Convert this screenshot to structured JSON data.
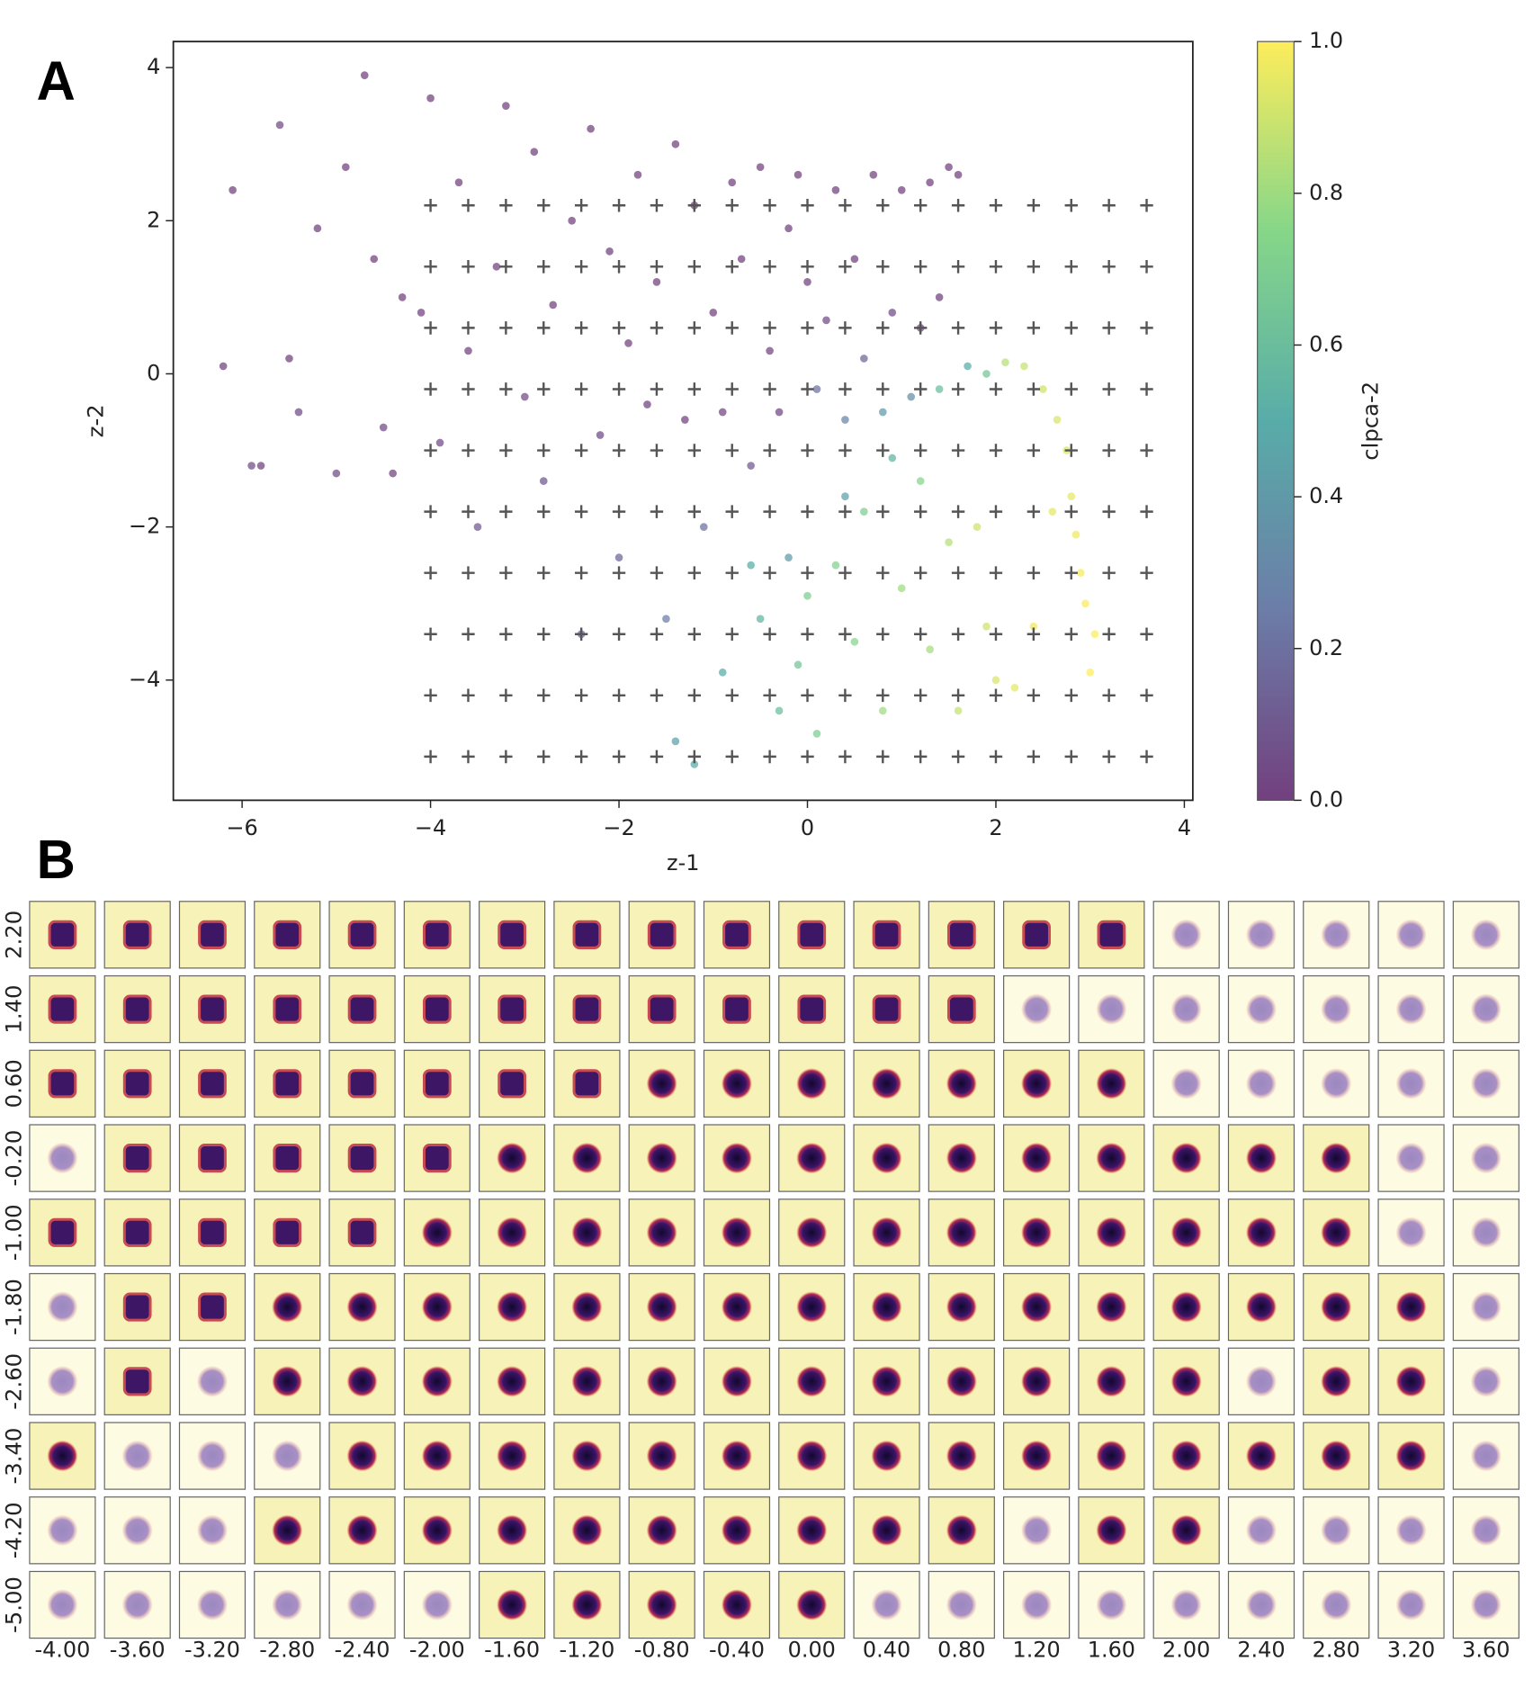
{
  "panels": {
    "a": "A",
    "b": "B"
  },
  "chart_data": [
    {
      "type": "scatter",
      "xlabel": "z-1",
      "ylabel": "z-2",
      "colorbar_label": "clpca-2",
      "colormap": "viridis",
      "xlim": [
        -6.73,
        4.09
      ],
      "ylim": [
        -5.57,
        4.34
      ],
      "clim": [
        0,
        1
      ],
      "xticks": [
        {
          "value": -6,
          "label": "−6"
        },
        {
          "value": -4,
          "label": "−4"
        },
        {
          "value": -2,
          "label": "−2"
        },
        0,
        2,
        4
      ],
      "yticks": [
        {
          "value": -4,
          "label": "−4"
        },
        {
          "value": -2,
          "label": "−2"
        },
        0,
        2,
        4
      ],
      "cticks": [
        {
          "value": 0,
          "label": "0.0"
        },
        0.2,
        0.4,
        0.6,
        0.8,
        {
          "value": 1,
          "label": "1.0"
        }
      ],
      "x": [
        -6.2,
        -6.1,
        -5.9,
        -5.8,
        -5.6,
        -5.5,
        -5.4,
        -5.2,
        -5.0,
        -4.9,
        -4.7,
        -4.6,
        -4.5,
        -4.4,
        -4.3,
        -4.1,
        -4.0,
        -3.9,
        -3.7,
        -3.6,
        -3.5,
        -3.3,
        -3.2,
        -3.0,
        -2.9,
        -2.8,
        -2.7,
        -2.5,
        -2.4,
        -2.3,
        -2.2,
        -2.1,
        -2.0,
        -1.9,
        -1.8,
        -1.7,
        -1.6,
        -1.5,
        -1.4,
        -1.3,
        -1.2,
        -1.1,
        -1.0,
        -0.9,
        -0.8,
        -0.7,
        -0.6,
        -0.5,
        -0.4,
        -0.3,
        -0.2,
        -0.1,
        0,
        0.1,
        0.2,
        0.3,
        0.4,
        0.5,
        0.6,
        0.7,
        0.8,
        0.9,
        1.0,
        1.1,
        1.2,
        1.3,
        1.4,
        1.5,
        1.6,
        1.7,
        -1.4,
        -1.2,
        -0.9,
        -0.6,
        -0.5,
        -0.3,
        -0.1,
        0,
        0.1,
        0.3,
        0.5,
        0.6,
        0.8,
        1.0,
        1.2,
        1.3,
        1.5,
        1.6,
        1.8,
        1.9,
        2.0,
        1.4,
        1.9,
        0.9,
        0.4,
        -0.2,
        2.1,
        2.3,
        2.5,
        2.65,
        2.75,
        2.8,
        2.85,
        2.9,
        2.95,
        3.05,
        3.0,
        2.6,
        2.4,
        2.2
      ],
      "values": [
        0.1,
        2.4,
        -1.2,
        -1.2,
        3.25,
        0.2,
        -0.5,
        1.9,
        -1.3,
        2.7,
        3.9,
        1.5,
        -0.7,
        -1.3,
        1.0,
        0.8,
        3.6,
        -0.9,
        2.5,
        0.3,
        -2.0,
        1.4,
        3.5,
        -0.3,
        2.9,
        -1.4,
        0.9,
        2.0,
        -3.4,
        3.2,
        -0.8,
        1.6,
        -2.4,
        0.4,
        2.6,
        -0.4,
        1.2,
        -3.2,
        3.0,
        -0.6,
        2.2,
        -2.0,
        0.8,
        -0.5,
        2.5,
        1.5,
        -1.2,
        2.7,
        0.3,
        -0.5,
        1.9,
        2.6,
        1.2,
        -0.2,
        0.7,
        2.4,
        -0.6,
        1.5,
        0.2,
        2.6,
        -0.5,
        0.8,
        2.4,
        -0.3,
        0.6,
        2.5,
        1.0,
        2.7,
        2.6,
        0.1,
        -4.8,
        -5.1,
        -3.9,
        -2.5,
        -3.2,
        -4.4,
        -3.8,
        -2.9,
        -4.7,
        -2.5,
        -3.5,
        -1.8,
        -4.4,
        -2.8,
        -1.4,
        -3.6,
        -2.2,
        -4.4,
        -2.0,
        -3.3,
        -4.0,
        -0.2,
        0.0,
        -1.1,
        -1.6,
        -2.4,
        0.15,
        0.1,
        -0.2,
        -0.6,
        -1.0,
        -1.6,
        -2.1,
        -2.6,
        -3.0,
        -3.4,
        -3.9,
        -1.8,
        -3.3,
        -4.1
      ],
      "c": [
        0,
        0,
        0.05,
        0,
        0.05,
        0,
        0.05,
        0,
        0.05,
        0,
        0,
        0,
        0.05,
        0,
        0,
        0,
        0,
        0.05,
        0,
        0,
        0.1,
        0,
        0,
        0.05,
        0,
        0.1,
        0,
        0,
        0.15,
        0,
        0.05,
        0,
        0.15,
        0,
        0,
        0,
        0,
        0.25,
        0,
        0,
        0,
        0.2,
        0,
        0.02,
        0,
        0,
        0.1,
        0,
        0.02,
        0.03,
        0,
        0,
        0,
        0.2,
        0.05,
        0,
        0.3,
        0,
        0.15,
        0,
        0.4,
        0.05,
        0,
        0.35,
        0.05,
        0,
        0,
        0,
        0,
        0.5,
        0.45,
        0.5,
        0.5,
        0.5,
        0.55,
        0.6,
        0.65,
        0.7,
        0.7,
        0.72,
        0.75,
        0.7,
        0.8,
        0.8,
        0.75,
        0.82,
        0.85,
        0.88,
        0.9,
        0.9,
        0.92,
        0.6,
        0.65,
        0.55,
        0.45,
        0.4,
        0.85,
        0.88,
        0.9,
        0.92,
        0.93,
        0.95,
        0.97,
        0.98,
        0.99,
        1.0,
        1.0,
        0.95,
        0.97,
        0.95
      ]
    },
    {
      "type": "image_grid",
      "columns": [
        {
          "value": -4,
          "label": "-4.00"
        },
        {
          "value": -3.6,
          "label": "-3.60"
        },
        {
          "value": -3.2,
          "label": "-3.20"
        },
        {
          "value": -2.8,
          "label": "-2.80"
        },
        {
          "value": -2.4,
          "label": "-2.40"
        },
        {
          "value": -2,
          "label": "-2.00"
        },
        {
          "value": -1.6,
          "label": "-1.60"
        },
        {
          "value": -1.2,
          "label": "-1.20"
        },
        {
          "value": -0.8,
          "label": "-0.80"
        },
        {
          "value": -0.4,
          "label": "-0.40"
        },
        {
          "value": 0,
          "label": "0.00"
        },
        {
          "value": 0.4,
          "label": "0.40"
        },
        {
          "value": 0.8,
          "label": "0.80"
        },
        {
          "value": 1.2,
          "label": "1.20"
        },
        {
          "value": 1.6,
          "label": "1.60"
        },
        {
          "value": 2,
          "label": "2.00"
        },
        {
          "value": 2.4,
          "label": "2.40"
        },
        {
          "value": 2.8,
          "label": "2.80"
        },
        {
          "value": 3.2,
          "label": "3.20"
        },
        {
          "value": 3.6,
          "label": "3.60"
        }
      ],
      "rows": [
        {
          "value": 2.2,
          "label": "2.20"
        },
        {
          "value": 1.4,
          "label": "1.40"
        },
        {
          "value": 0.6,
          "label": "0.60"
        },
        {
          "value": -0.2,
          "label": "-0.20"
        },
        {
          "value": -1,
          "label": "-1.00"
        },
        {
          "value": -1.8,
          "label": "-1.80"
        },
        {
          "value": -2.6,
          "label": "-2.60"
        },
        {
          "value": -3.4,
          "label": "-3.40"
        },
        {
          "value": -4.2,
          "label": "-4.20"
        },
        {
          "value": -5,
          "label": "-5.00"
        }
      ],
      "cells": [
        "SSSSSSSSSSSSSSSFFFFF",
        "SSSSSSSSSSSSSFFFFFFF",
        "SSSSSSSSRRRRRRRFFFFF",
        "FSSSSSRRRRRRRRRRRRFF",
        "SSSSSRRRRRRRRRRRRRFF",
        "FSSRRRRRRRRRRRRRRRRF",
        "FSFRRRRRRRRRRRRRFRRF",
        "RFFFRRRRRRRRRRRRRRRF",
        "FFFRRRRRRRRRRFRRFFFF",
        "FFFFFFRRRRRFFFFFFFFF"
      ]
    }
  ]
}
